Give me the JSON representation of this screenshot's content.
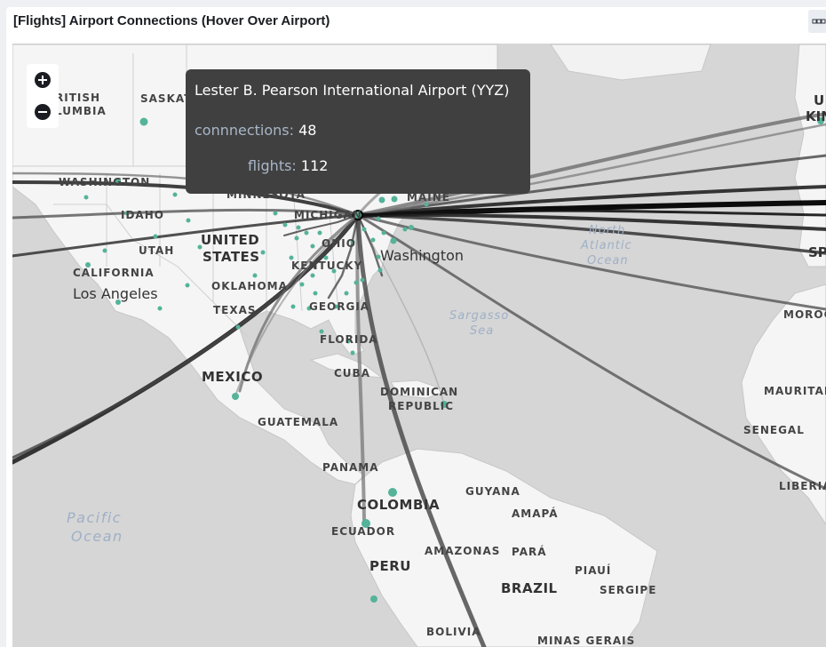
{
  "panel": {
    "title": "[Flights] Airport Connections (Hover Over Airport)",
    "menu_icon": "panel-options-icon"
  },
  "map": {
    "zoom_in_icon": "plus-icon",
    "zoom_out_icon": "minus-icon",
    "labels": {
      "british_columbia": "RITISH\nLUMBIA",
      "saskatchewan": "SASKAT",
      "washington_state": "WASHINGTON",
      "minnesota": "MINNESOTA",
      "idaho": "IDAHO",
      "michigan": "MICHIGAN",
      "maine": "MAINE",
      "united_states_1": "UNITED",
      "united_states_2": "STATES",
      "utah": "UTAH",
      "ohio": "OHIO",
      "kentucky": "KENTUCKY",
      "california": "CALIFORNIA",
      "oklahoma": "OKLAHOMA",
      "los_angeles": "Los Angeles",
      "washington_city": "Washington",
      "texas": "TEXAS",
      "georgia": "GEORGIA",
      "florida": "FLORIDA",
      "mexico": "MEXICO",
      "cuba": "CUBA",
      "dominican_1": "DOMINICAN",
      "dominican_2": "REPUBLIC",
      "guatemala": "GUATEMALA",
      "panama": "PANAMA",
      "colombia": "COLOMBIA",
      "guyana": "GUYANA",
      "amapa": "AMAPÁ",
      "ecuador": "ECUADOR",
      "peru": "PERU",
      "amazonas": "AMAZONAS",
      "para": "PARÁ",
      "piaui": "PIAUÍ",
      "brazil": "BRAZIL",
      "sergipe": "SERGIPE",
      "bolivia": "BOLIVIA",
      "minas_gerais": "MINAS GERAIS",
      "north_atlantic_1": "North",
      "north_atlantic_2": "Atlantic",
      "north_atlantic_3": "Ocean",
      "sargasso_1": "Sargasso",
      "sargasso_2": "Sea",
      "pacific_1": "Pacific",
      "pacific_2": "Ocean",
      "uk_1": "U",
      "uk_2": "KIN",
      "spain": "SP",
      "morocco": "MOROC",
      "mauritania": "MAURITAN",
      "senegal": "SENEGAL",
      "liberia": "LIBERIA"
    },
    "colors": {
      "land": "#f5f5f5",
      "water": "#d6d6d6",
      "airport": "#54b399",
      "route": "#000000"
    }
  },
  "tooltip": {
    "title": "Lester B. Pearson International Airport (YYZ)",
    "connections_key": "connnections:",
    "connections_value": "48",
    "flights_key": "flights:",
    "flights_value": "112"
  }
}
